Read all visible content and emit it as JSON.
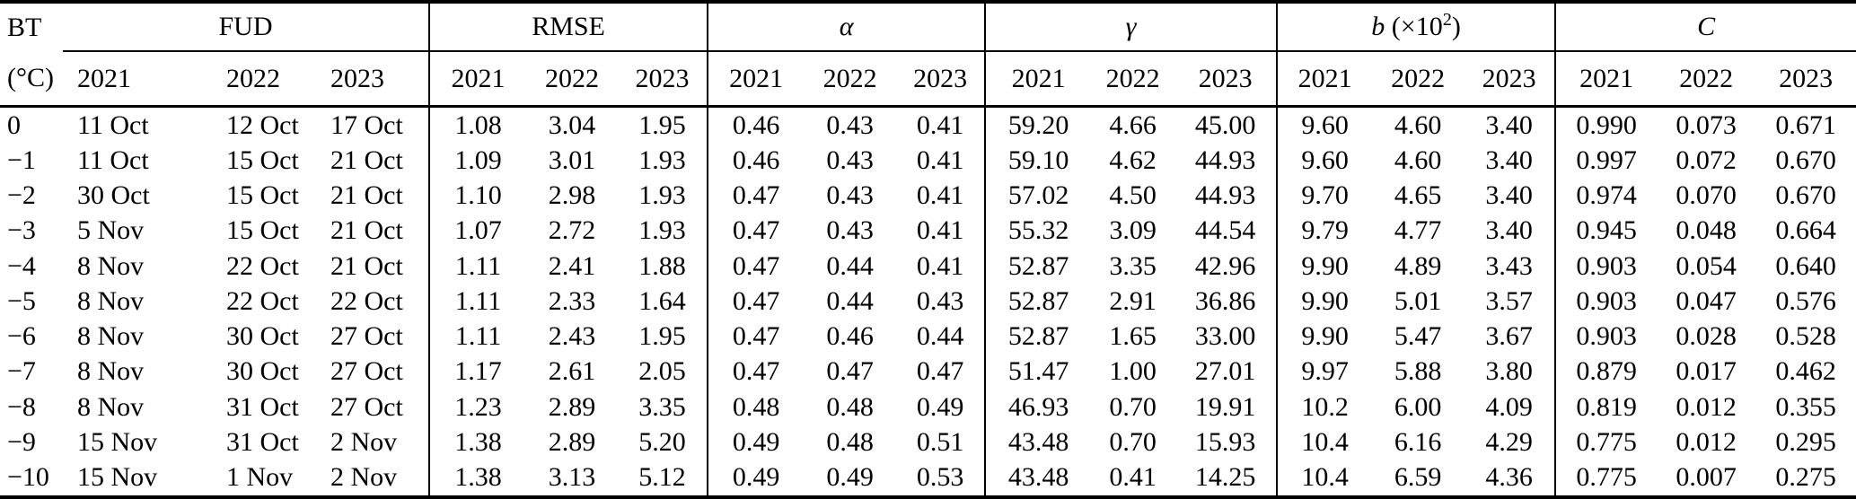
{
  "header": {
    "bt_line1": "BT",
    "bt_line2": "(°C)",
    "years": [
      "2021",
      "2022",
      "2023"
    ],
    "groups": [
      {
        "id": "fud",
        "label": "FUD",
        "italic": false
      },
      {
        "id": "rmse",
        "label": "RMSE",
        "italic": false
      },
      {
        "id": "alpha",
        "label": "α",
        "italic": true
      },
      {
        "id": "gamma",
        "label": "γ",
        "italic": true
      },
      {
        "id": "b",
        "label": "b (×10²)",
        "italic": true,
        "label_var": "b",
        "label_pre": " (×10",
        "label_sup": "2",
        "label_post": ")"
      },
      {
        "id": "c",
        "label": "C",
        "italic": true
      }
    ]
  },
  "colors": {
    "text": "#000000",
    "background": "#ffffff",
    "rule": "#000000"
  },
  "rows": [
    {
      "bt": "0",
      "fud": [
        "11 Oct",
        "12 Oct",
        "17 Oct"
      ],
      "rmse": [
        "1.08",
        "3.04",
        "1.95"
      ],
      "alpha": [
        "0.46",
        "0.43",
        "0.41"
      ],
      "gamma": [
        "59.20",
        "4.66",
        "45.00"
      ],
      "b": [
        "9.60",
        "4.60",
        "3.40"
      ],
      "c": [
        "0.990",
        "0.073",
        "0.671"
      ]
    },
    {
      "bt": "−1",
      "fud": [
        "11 Oct",
        "15 Oct",
        "21 Oct"
      ],
      "rmse": [
        "1.09",
        "3.01",
        "1.93"
      ],
      "alpha": [
        "0.46",
        "0.43",
        "0.41"
      ],
      "gamma": [
        "59.10",
        "4.62",
        "44.93"
      ],
      "b": [
        "9.60",
        "4.60",
        "3.40"
      ],
      "c": [
        "0.997",
        "0.072",
        "0.670"
      ]
    },
    {
      "bt": "−2",
      "fud": [
        "30 Oct",
        "15 Oct",
        "21 Oct"
      ],
      "rmse": [
        "1.10",
        "2.98",
        "1.93"
      ],
      "alpha": [
        "0.47",
        "0.43",
        "0.41"
      ],
      "gamma": [
        "57.02",
        "4.50",
        "44.93"
      ],
      "b": [
        "9.70",
        "4.65",
        "3.40"
      ],
      "c": [
        "0.974",
        "0.070",
        "0.670"
      ]
    },
    {
      "bt": "−3",
      "fud": [
        "5 Nov",
        "15 Oct",
        "21 Oct"
      ],
      "rmse": [
        "1.07",
        "2.72",
        "1.93"
      ],
      "alpha": [
        "0.47",
        "0.43",
        "0.41"
      ],
      "gamma": [
        "55.32",
        "3.09",
        "44.54"
      ],
      "b": [
        "9.79",
        "4.77",
        "3.40"
      ],
      "c": [
        "0.945",
        "0.048",
        "0.664"
      ]
    },
    {
      "bt": "−4",
      "fud": [
        "8 Nov",
        "22 Oct",
        "21 Oct"
      ],
      "rmse": [
        "1.11",
        "2.41",
        "1.88"
      ],
      "alpha": [
        "0.47",
        "0.44",
        "0.41"
      ],
      "gamma": [
        "52.87",
        "3.35",
        "42.96"
      ],
      "b": [
        "9.90",
        "4.89",
        "3.43"
      ],
      "c": [
        "0.903",
        "0.054",
        "0.640"
      ]
    },
    {
      "bt": "−5",
      "fud": [
        "8 Nov",
        "22 Oct",
        "22 Oct"
      ],
      "rmse": [
        "1.11",
        "2.33",
        "1.64"
      ],
      "alpha": [
        "0.47",
        "0.44",
        "0.43"
      ],
      "gamma": [
        "52.87",
        "2.91",
        "36.86"
      ],
      "b": [
        "9.90",
        "5.01",
        "3.57"
      ],
      "c": [
        "0.903",
        "0.047",
        "0.576"
      ]
    },
    {
      "bt": "−6",
      "fud": [
        "8 Nov",
        "30 Oct",
        "27 Oct"
      ],
      "rmse": [
        "1.11",
        "2.43",
        "1.95"
      ],
      "alpha": [
        "0.47",
        "0.46",
        "0.44"
      ],
      "gamma": [
        "52.87",
        "1.65",
        "33.00"
      ],
      "b": [
        "9.90",
        "5.47",
        "3.67"
      ],
      "c": [
        "0.903",
        "0.028",
        "0.528"
      ]
    },
    {
      "bt": "−7",
      "fud": [
        "8 Nov",
        "30 Oct",
        "27 Oct"
      ],
      "rmse": [
        "1.17",
        "2.61",
        "2.05"
      ],
      "alpha": [
        "0.47",
        "0.47",
        "0.47"
      ],
      "gamma": [
        "51.47",
        "1.00",
        "27.01"
      ],
      "b": [
        "9.97",
        "5.88",
        "3.80"
      ],
      "c": [
        "0.879",
        "0.017",
        "0.462"
      ]
    },
    {
      "bt": "−8",
      "fud": [
        "8 Nov",
        "31 Oct",
        "27 Oct"
      ],
      "rmse": [
        "1.23",
        "2.89",
        "3.35"
      ],
      "alpha": [
        "0.48",
        "0.48",
        "0.49"
      ],
      "gamma": [
        "46.93",
        "0.70",
        "19.91"
      ],
      "b": [
        "10.2",
        "6.00",
        "4.09"
      ],
      "c": [
        "0.819",
        "0.012",
        "0.355"
      ]
    },
    {
      "bt": "−9",
      "fud": [
        "15 Nov",
        "31 Oct",
        "2 Nov"
      ],
      "rmse": [
        "1.38",
        "2.89",
        "5.20"
      ],
      "alpha": [
        "0.49",
        "0.48",
        "0.51"
      ],
      "gamma": [
        "43.48",
        "0.70",
        "15.93"
      ],
      "b": [
        "10.4",
        "6.16",
        "4.29"
      ],
      "c": [
        "0.775",
        "0.012",
        "0.295"
      ]
    },
    {
      "bt": "−10",
      "fud": [
        "15 Nov",
        "1 Nov",
        "2 Nov"
      ],
      "rmse": [
        "1.38",
        "3.13",
        "5.12"
      ],
      "alpha": [
        "0.49",
        "0.49",
        "0.53"
      ],
      "gamma": [
        "43.48",
        "0.41",
        "14.25"
      ],
      "b": [
        "10.4",
        "6.59",
        "4.36"
      ],
      "c": [
        "0.775",
        "0.007",
        "0.275"
      ]
    }
  ]
}
